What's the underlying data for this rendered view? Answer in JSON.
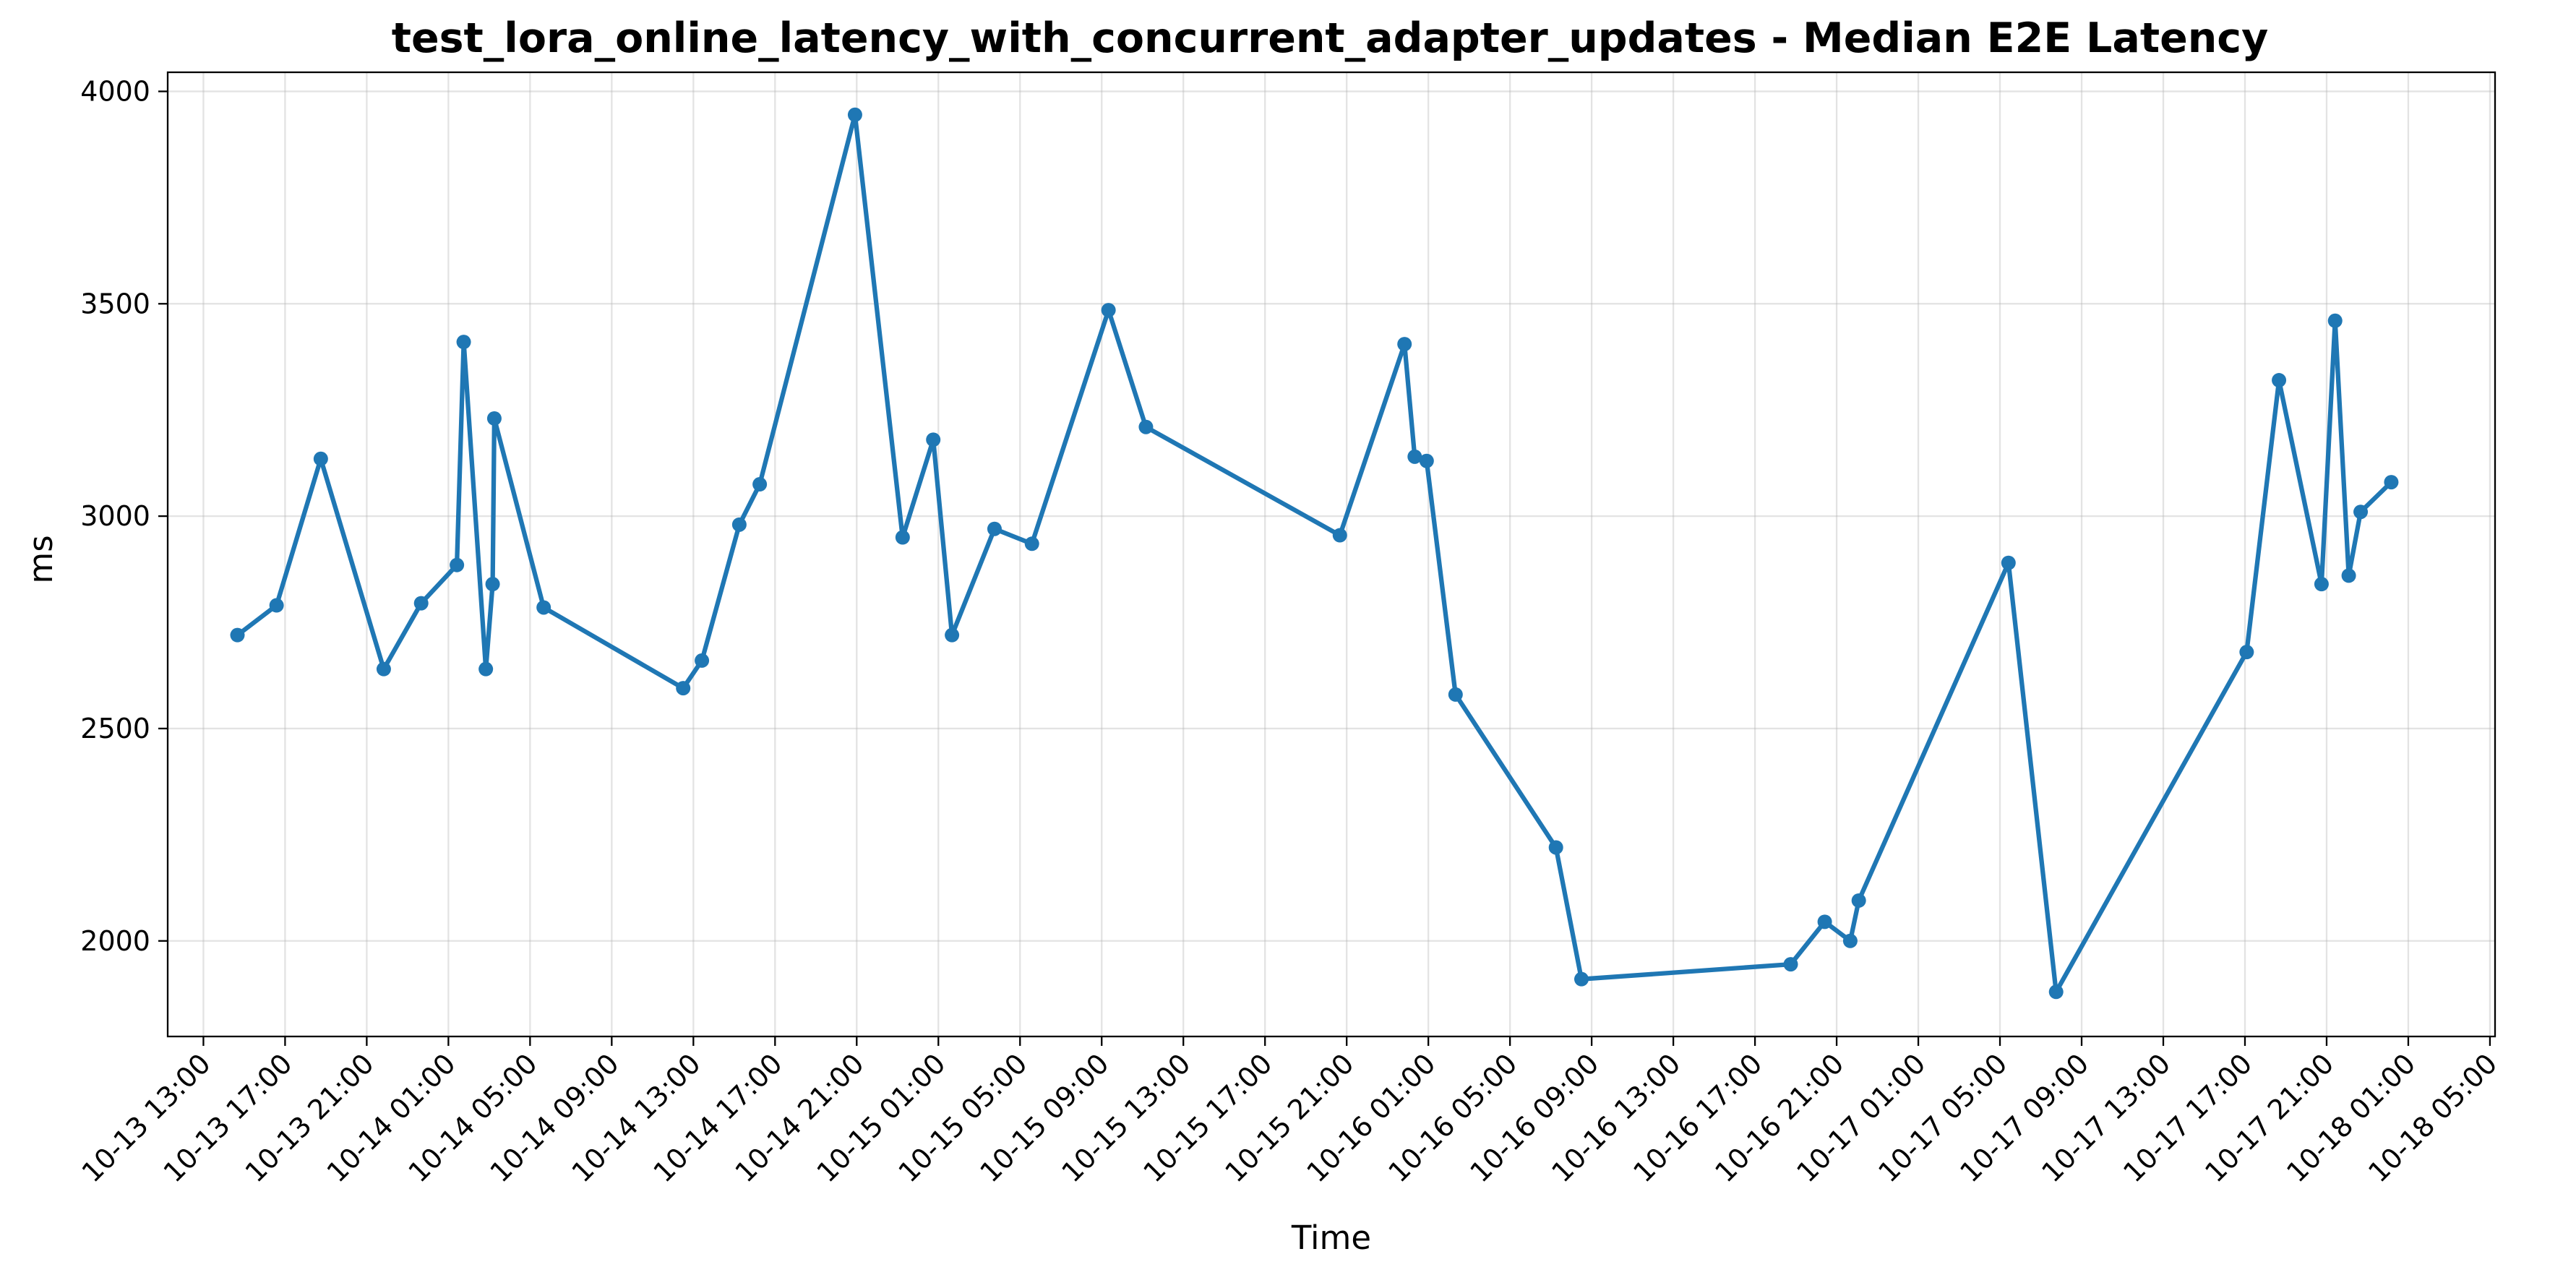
{
  "chart_data": {
    "type": "line",
    "title": "test_lora_online_latency_with_concurrent_adapter_updates - Median E2E Latency",
    "xlabel": "Time",
    "ylabel": "ms",
    "x_axis_type": "datetime",
    "xlim": [
      "2024-10-13 11:15",
      "2024-10-18 05:15"
    ],
    "ylim": [
      1775,
      4045
    ],
    "grid": true,
    "legend": "none",
    "color": "#1f77b4",
    "x_ticks": [
      {
        "value": "2024-10-13 13:00",
        "label": "10-13 13:00"
      },
      {
        "value": "2024-10-13 17:00",
        "label": "10-13 17:00"
      },
      {
        "value": "2024-10-13 21:00",
        "label": "10-13 21:00"
      },
      {
        "value": "2024-10-14 01:00",
        "label": "10-14 01:00"
      },
      {
        "value": "2024-10-14 05:00",
        "label": "10-14 05:00"
      },
      {
        "value": "2024-10-14 09:00",
        "label": "10-14 09:00"
      },
      {
        "value": "2024-10-14 13:00",
        "label": "10-14 13:00"
      },
      {
        "value": "2024-10-14 17:00",
        "label": "10-14 17:00"
      },
      {
        "value": "2024-10-14 21:00",
        "label": "10-14 21:00"
      },
      {
        "value": "2024-10-15 01:00",
        "label": "10-15 01:00"
      },
      {
        "value": "2024-10-15 05:00",
        "label": "10-15 05:00"
      },
      {
        "value": "2024-10-15 09:00",
        "label": "10-15 09:00"
      },
      {
        "value": "2024-10-15 13:00",
        "label": "10-15 13:00"
      },
      {
        "value": "2024-10-15 17:00",
        "label": "10-15 17:00"
      },
      {
        "value": "2024-10-15 21:00",
        "label": "10-15 21:00"
      },
      {
        "value": "2024-10-16 01:00",
        "label": "10-16 01:00"
      },
      {
        "value": "2024-10-16 05:00",
        "label": "10-16 05:00"
      },
      {
        "value": "2024-10-16 09:00",
        "label": "10-16 09:00"
      },
      {
        "value": "2024-10-16 13:00",
        "label": "10-16 13:00"
      },
      {
        "value": "2024-10-16 17:00",
        "label": "10-16 17:00"
      },
      {
        "value": "2024-10-16 21:00",
        "label": "10-16 21:00"
      },
      {
        "value": "2024-10-17 01:00",
        "label": "10-17 01:00"
      },
      {
        "value": "2024-10-17 05:00",
        "label": "10-17 05:00"
      },
      {
        "value": "2024-10-17 09:00",
        "label": "10-17 09:00"
      },
      {
        "value": "2024-10-17 13:00",
        "label": "10-17 13:00"
      },
      {
        "value": "2024-10-17 17:00",
        "label": "10-17 17:00"
      },
      {
        "value": "2024-10-17 21:00",
        "label": "10-17 21:00"
      },
      {
        "value": "2024-10-18 01:00",
        "label": "10-18 01:00"
      },
      {
        "value": "2024-10-18 05:00",
        "label": "10-18 05:00"
      }
    ],
    "y_ticks": [
      {
        "value": 2000,
        "label": "2000"
      },
      {
        "value": 2500,
        "label": "2500"
      },
      {
        "value": 3000,
        "label": "3000"
      },
      {
        "value": 3500,
        "label": "3500"
      },
      {
        "value": 4000,
        "label": "4000"
      }
    ],
    "series": [
      {
        "points": [
          {
            "x": "2024-10-13 14:40",
            "y": 2720
          },
          {
            "x": "2024-10-13 16:35",
            "y": 2790
          },
          {
            "x": "2024-10-13 18:45",
            "y": 3135
          },
          {
            "x": "2024-10-13 21:50",
            "y": 2640
          },
          {
            "x": "2024-10-13 23:40",
            "y": 2795
          },
          {
            "x": "2024-10-14 01:25",
            "y": 2885
          },
          {
            "x": "2024-10-14 01:45",
            "y": 3410
          },
          {
            "x": "2024-10-14 02:50",
            "y": 2640
          },
          {
            "x": "2024-10-14 03:10",
            "y": 2840
          },
          {
            "x": "2024-10-14 03:15",
            "y": 3230
          },
          {
            "x": "2024-10-14 05:40",
            "y": 2785
          },
          {
            "x": "2024-10-14 12:30",
            "y": 2595
          },
          {
            "x": "2024-10-14 13:25",
            "y": 2660
          },
          {
            "x": "2024-10-14 15:15",
            "y": 2980
          },
          {
            "x": "2024-10-14 16:15",
            "y": 3075
          },
          {
            "x": "2024-10-14 20:55",
            "y": 3945
          },
          {
            "x": "2024-10-14 23:15",
            "y": 2950
          },
          {
            "x": "2024-10-15 00:45",
            "y": 3180
          },
          {
            "x": "2024-10-15 01:40",
            "y": 2720
          },
          {
            "x": "2024-10-15 03:45",
            "y": 2970
          },
          {
            "x": "2024-10-15 05:35",
            "y": 2935
          },
          {
            "x": "2024-10-15 09:20",
            "y": 3485
          },
          {
            "x": "2024-10-15 11:10",
            "y": 3210
          },
          {
            "x": "2024-10-15 20:40",
            "y": 2955
          },
          {
            "x": "2024-10-15 23:50",
            "y": 3405
          },
          {
            "x": "2024-10-16 00:20",
            "y": 3140
          },
          {
            "x": "2024-10-16 00:55",
            "y": 3130
          },
          {
            "x": "2024-10-16 02:20",
            "y": 2580
          },
          {
            "x": "2024-10-16 07:15",
            "y": 2220
          },
          {
            "x": "2024-10-16 08:30",
            "y": 1910
          },
          {
            "x": "2024-10-16 18:45",
            "y": 1945
          },
          {
            "x": "2024-10-16 20:25",
            "y": 2045
          },
          {
            "x": "2024-10-16 21:40",
            "y": 2000
          },
          {
            "x": "2024-10-16 22:05",
            "y": 2095
          },
          {
            "x": "2024-10-17 05:25",
            "y": 2890
          },
          {
            "x": "2024-10-17 07:45",
            "y": 1880
          },
          {
            "x": "2024-10-17 17:05",
            "y": 2680
          },
          {
            "x": "2024-10-17 18:40",
            "y": 3320
          },
          {
            "x": "2024-10-17 20:45",
            "y": 2840
          },
          {
            "x": "2024-10-17 21:25",
            "y": 3460
          },
          {
            "x": "2024-10-17 22:05",
            "y": 2860
          },
          {
            "x": "2024-10-17 22:40",
            "y": 3010
          },
          {
            "x": "2024-10-18 00:10",
            "y": 3080
          }
        ]
      }
    ]
  }
}
